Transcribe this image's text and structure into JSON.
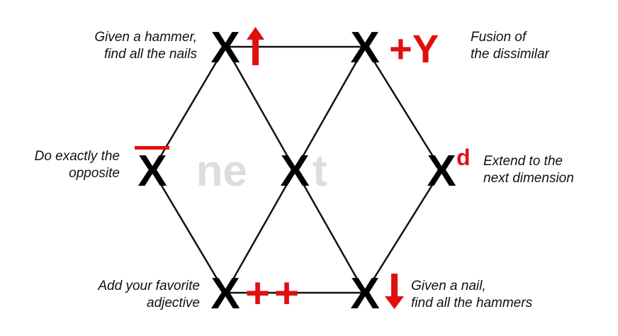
{
  "colors": {
    "line": "#111111",
    "node": "#000000",
    "accent": "#e01010",
    "watermark": "#dddddd"
  },
  "watermark": {
    "left": "ne",
    "right": "t"
  },
  "nodes": {
    "top_left": {
      "symbol": "X",
      "modifier": "up-arrow-icon"
    },
    "top_right": {
      "symbol": "X",
      "modifier_text": "+Y"
    },
    "middle_left": {
      "symbol": "X",
      "modifier": "overline"
    },
    "center": {
      "symbol": "X"
    },
    "middle_right": {
      "symbol": "X",
      "modifier_text": "d"
    },
    "bottom_left": {
      "symbol": "X",
      "modifier_text": "++"
    },
    "bottom_right": {
      "symbol": "X",
      "modifier": "down-arrow-icon"
    }
  },
  "captions": {
    "top_left": [
      "Given a hammer,",
      "find all the nails"
    ],
    "top_right": [
      "Fusion of",
      "the dissimilar"
    ],
    "middle_left": [
      "Do exactly the",
      "opposite"
    ],
    "middle_right": [
      "Extend to the",
      "next dimension"
    ],
    "bottom_left": [
      "Add your favorite",
      "adjective"
    ],
    "bottom_right": [
      "Given a nail,",
      "find all the hammers"
    ]
  }
}
